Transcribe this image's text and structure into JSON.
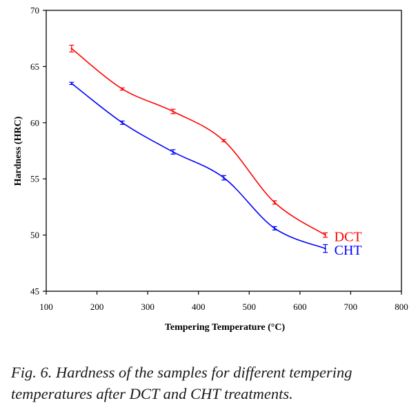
{
  "chart_data": {
    "type": "line",
    "title": "",
    "xlabel": "Tempering Temperature (°C)",
    "ylabel": "Hardness (HRC)",
    "xlim": [
      100,
      800
    ],
    "ylim": [
      45,
      70
    ],
    "xticks": [
      100,
      200,
      300,
      400,
      500,
      600,
      700,
      800
    ],
    "yticks": [
      45,
      50,
      55,
      60,
      65,
      70
    ],
    "grid": false,
    "legend": "inline-right-of-line-ends",
    "x": [
      150,
      250,
      350,
      450,
      550,
      650
    ],
    "series": [
      {
        "name": "DCT",
        "color": "#ff0000",
        "values": [
          66.6,
          63.0,
          61.0,
          58.4,
          52.9,
          50.0
        ],
        "errors": [
          0.3,
          0.1,
          0.2,
          0.1,
          0.15,
          0.2
        ]
      },
      {
        "name": "CHT",
        "color": "#0000ff",
        "values": [
          63.5,
          60.0,
          57.4,
          55.1,
          50.6,
          48.8
        ],
        "errors": [
          0.1,
          0.15,
          0.2,
          0.2,
          0.15,
          0.35
        ]
      }
    ]
  },
  "caption": {
    "line1": "Fig. 6. Hardness of the samples for different tempering",
    "line2": "temperatures after DCT and CHT treatments."
  }
}
